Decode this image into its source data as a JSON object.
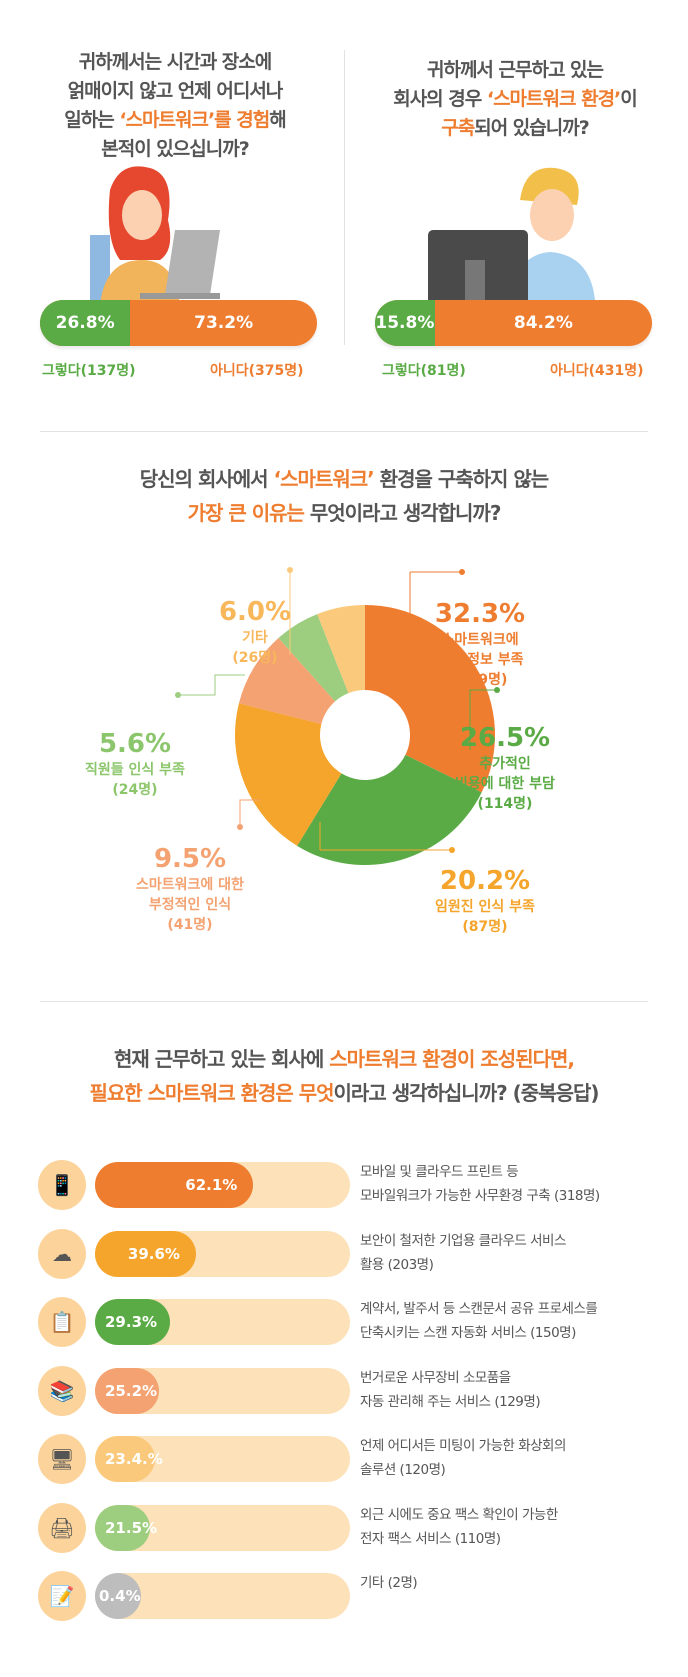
{
  "section1": {
    "left": {
      "question_parts": [
        "귀하께서는 시간과 장소에\n얽매이지 않고 언제 어디서나\n일하는 ",
        "‘스마트워크’를 경험",
        "해\n본적이 있으십니까?"
      ],
      "yes_pct": "26.8%",
      "no_pct": "73.2%",
      "yes_value": 26.8,
      "yes_label": "그렇다(137명)",
      "no_label": "아니다(375명)"
    },
    "right": {
      "question_parts": [
        "귀하께서 근무하고 있는\n회사의 경우 ",
        "‘스마트워크 환경’",
        "이\n",
        "구축",
        "되어 있습니까?"
      ],
      "yes_pct": "15.8%",
      "no_pct": "84.2%",
      "yes_value": 15.8,
      "yes_label": "그렇다(81명)",
      "no_label": "아니다(431명)"
    }
  },
  "section2": {
    "title_parts": [
      "당신의 회사에서 ",
      "‘스마트워크’",
      " 환경을 구축하지 않는",
      "가장 큰 이유는",
      " 무엇이라고 생각합니까?"
    ]
  },
  "section3": {
    "title_parts": [
      "현재 근무하고 있는 회사에 ",
      "스마트워크 환경이 조성된다면,",
      "필요한 스마트워크 환경은 무엇",
      "이라고 생각하십니까? (중복응답)"
    ]
  },
  "chart_data": [
    {
      "type": "pie",
      "donut": true,
      "slices": [
        {
          "pct": "32.3%",
          "value": 32.3,
          "label": "스마트워크에\n대한 정보 부족",
          "count": "(139명)",
          "color": "#ee7d30"
        },
        {
          "pct": "26.5%",
          "value": 26.5,
          "label": "추가적인\n비용에 대한 부담",
          "count": "(114명)",
          "color": "#5aab45"
        },
        {
          "pct": "20.2%",
          "value": 20.2,
          "label": "임원진 인식 부족",
          "count": "(87명)",
          "color": "#f5a52b"
        },
        {
          "pct": "9.5%",
          "value": 9.5,
          "label": "스마트워크에 대한\n부정적인 인식",
          "count": "(41명)",
          "color": "#f4a271"
        },
        {
          "pct": "5.6%",
          "value": 5.6,
          "label": "직원들 인식 부족",
          "count": "(24명)",
          "color": "#9dce7f"
        },
        {
          "pct": "6.0%",
          "value": 6.0,
          "label": "기타",
          "count": "(26명)",
          "color": "#fbc97b"
        }
      ]
    },
    {
      "type": "bar",
      "orientation": "horizontal",
      "items": [
        {
          "icon": "mobile-phone-icon",
          "glyph": "📱",
          "pct": "62.1%",
          "value": 62.1,
          "color": "#ee7d30",
          "text": "모바일 및 클라우드 프린트 등\n모바일워크가 가능한 사무환경 구축 (318명)"
        },
        {
          "icon": "cloud-upload-icon",
          "glyph": "☁",
          "pct": "39.6%",
          "value": 39.6,
          "color": "#f5a52b",
          "text": "보안이 철저한 기업용 클라우드 서비스\n활용 (203명)"
        },
        {
          "icon": "clipboard-icon",
          "glyph": "📋",
          "pct": "29.3%",
          "value": 29.3,
          "color": "#5aab45",
          "text": "계약서, 발주서 등 스캔문서 공유 프로세스를\n단축시키는 스캔 자동화 서비스 (150명)"
        },
        {
          "icon": "binders-icon",
          "glyph": "📚",
          "pct": "25.2%",
          "value": 25.2,
          "color": "#f4a271",
          "text": "번거로운 사무장비 소모품을\n자동 관리해 주는 서비스 (129명)"
        },
        {
          "icon": "video-conference-icon",
          "glyph": "🖥",
          "pct": "23.4.%",
          "value": 23.4,
          "color": "#fbc97b",
          "text": "언제 어디서든 미팅이 가능한 화상회의\n솔루션 (120명)"
        },
        {
          "icon": "fax-printer-icon",
          "glyph": "🖨",
          "pct": "21.5%",
          "value": 21.5,
          "color": "#9dce7f",
          "text": "외근 시에도 중요 팩스 확인이 가능한\n전자 팩스 서비스 (110명)"
        },
        {
          "icon": "notepad-pencil-icon",
          "glyph": "📝",
          "pct": "0.4%",
          "value": 0.4,
          "color": "#bdbdbd",
          "text": "기타 (2명)"
        }
      ]
    }
  ]
}
